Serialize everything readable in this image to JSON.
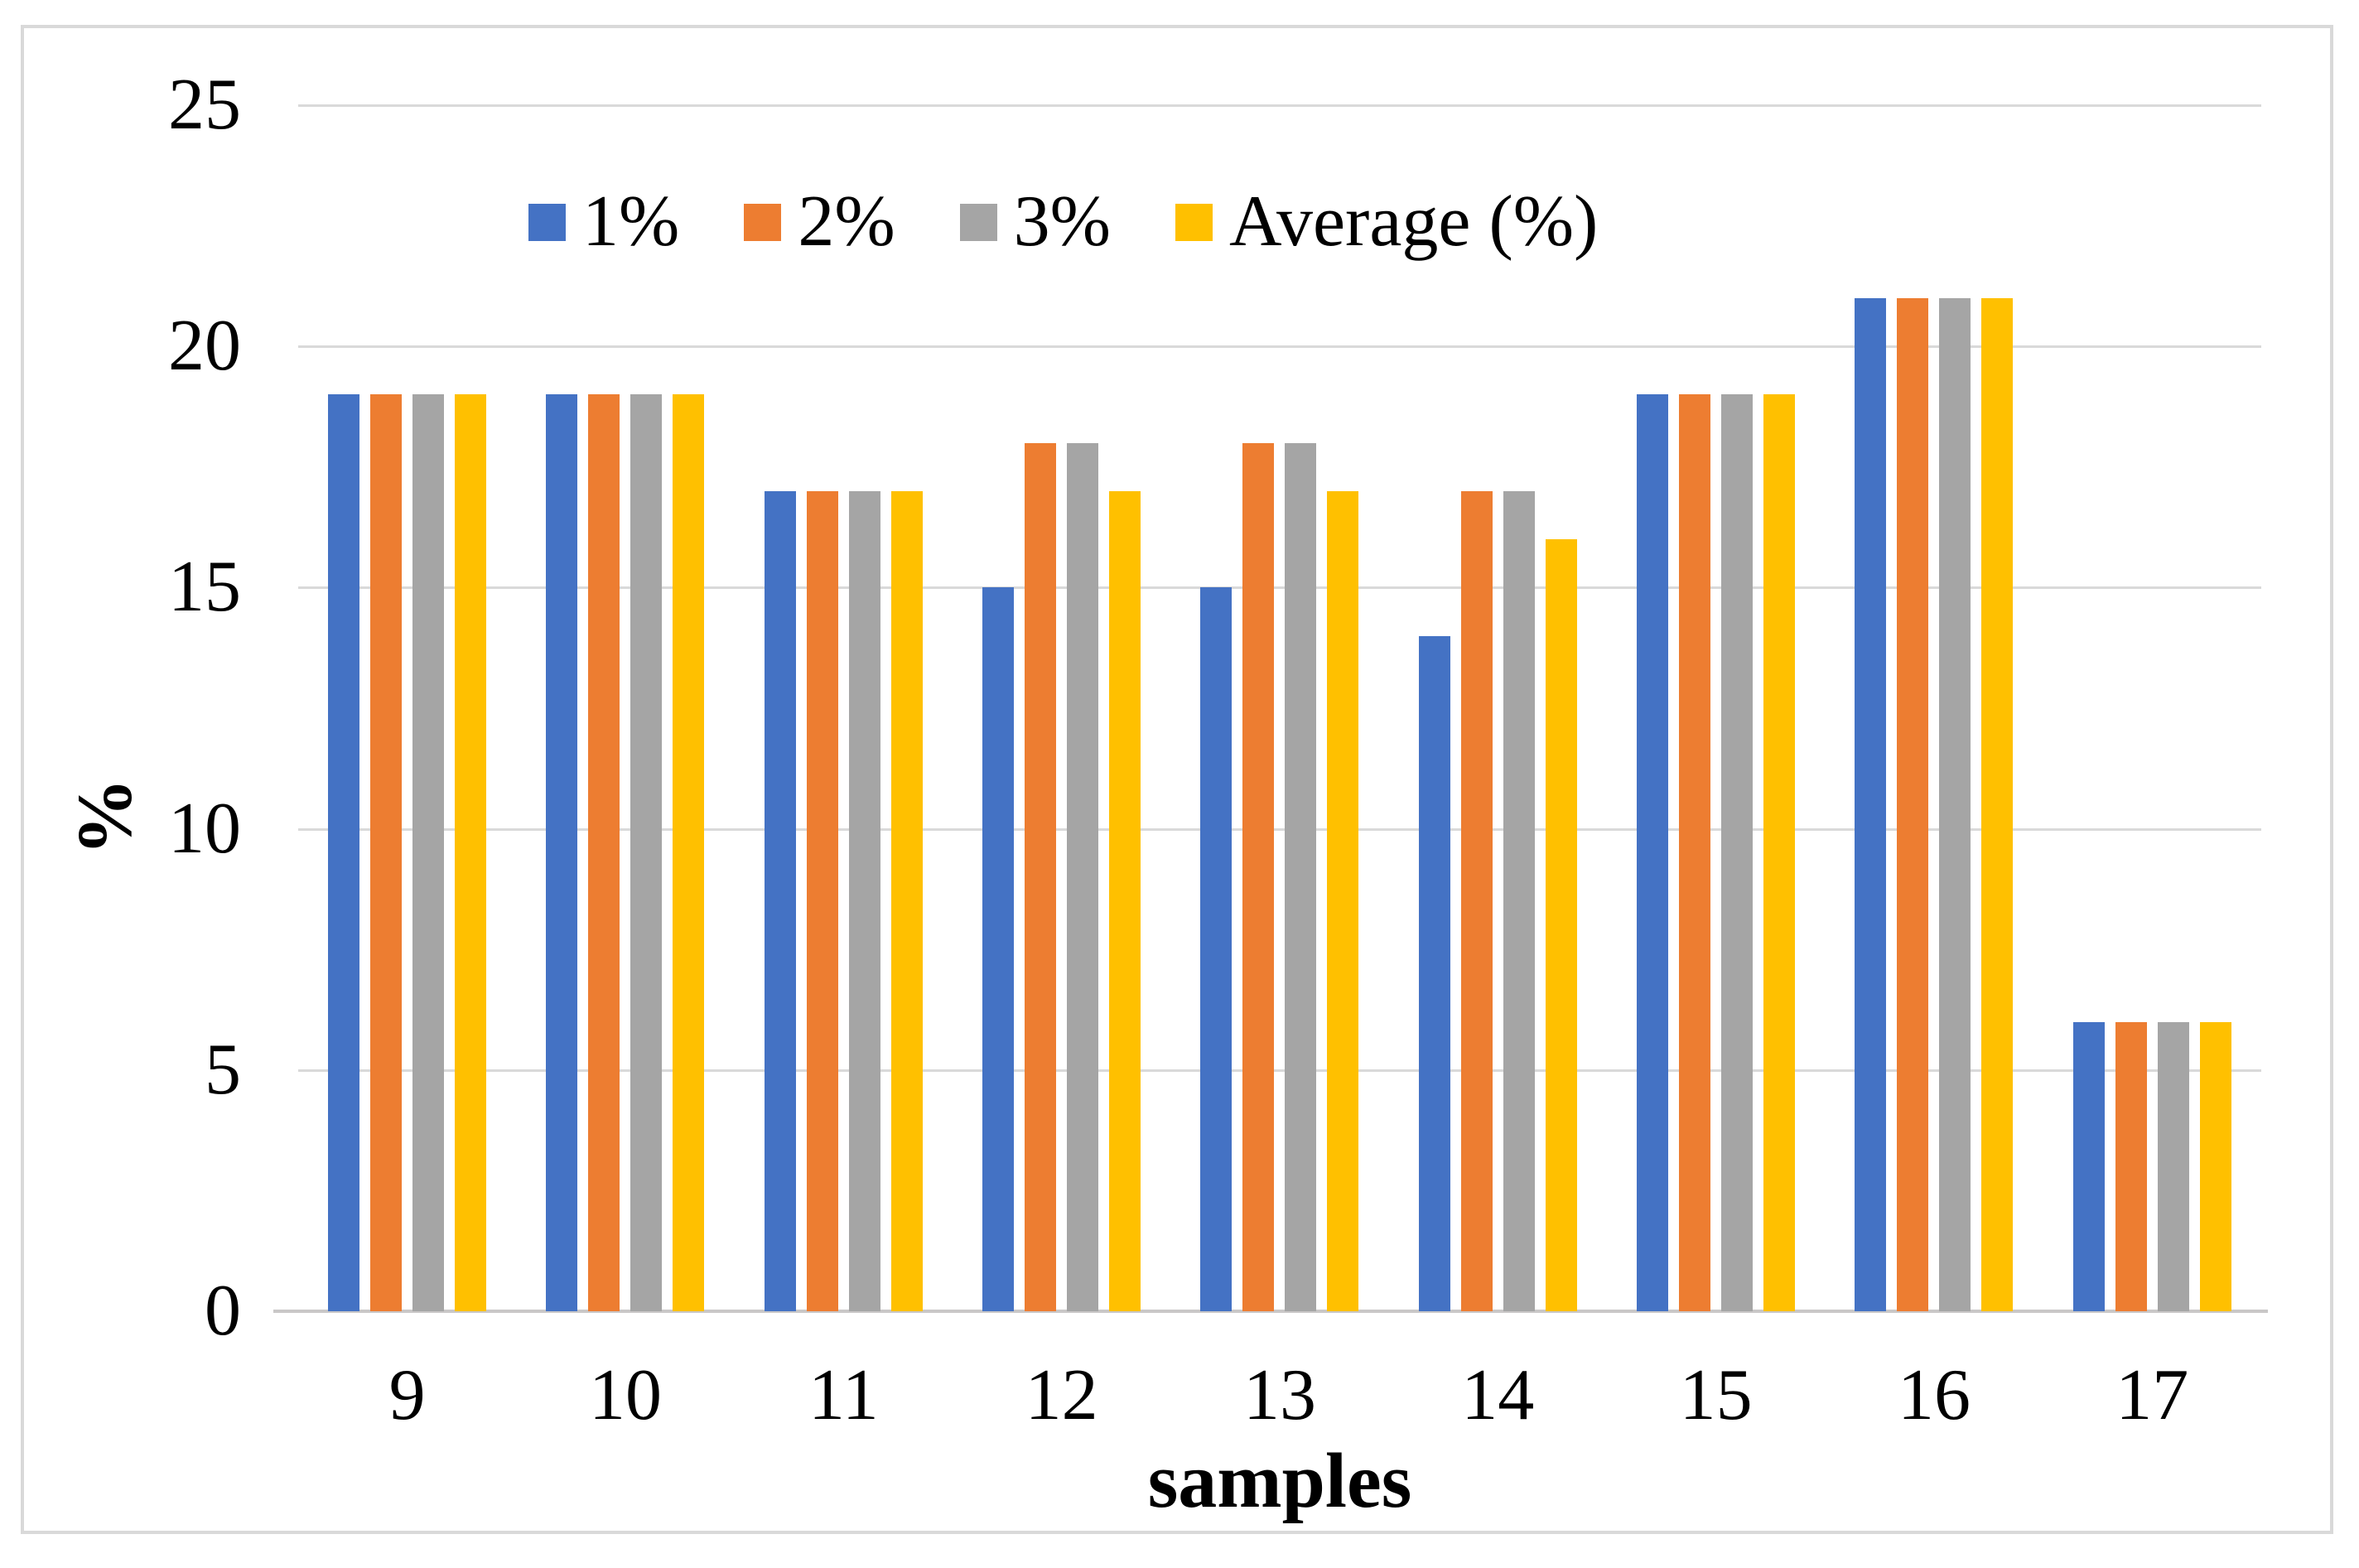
{
  "figure": {
    "background": "#ffffff",
    "frame_border_color": "#d9d9d9",
    "gridline_color": "#d9d9d9",
    "axisline_color": "#c9c7c7",
    "text_color": "#000000"
  },
  "chart_data": {
    "type": "bar",
    "title": "",
    "xlabel": "samples",
    "ylabel": "%",
    "categories": [
      "9",
      "10",
      "11",
      "12",
      "13",
      "14",
      "15",
      "16",
      "17"
    ],
    "series": [
      {
        "name": "1%",
        "color": "#4472C4",
        "values": [
          19,
          19,
          17,
          15,
          15,
          14,
          19,
          21,
          6
        ]
      },
      {
        "name": "2%",
        "color": "#ED7D31",
        "values": [
          19,
          19,
          17,
          18,
          18,
          17,
          19,
          21,
          6
        ]
      },
      {
        "name": "3%",
        "color": "#A5A5A5",
        "values": [
          19,
          19,
          17,
          18,
          18,
          17,
          19,
          21,
          6
        ]
      },
      {
        "name": "Average (%)",
        "color": "#FFC000",
        "values": [
          19,
          19,
          17,
          17,
          17,
          16,
          19,
          21,
          6
        ]
      }
    ],
    "ylim": [
      0,
      25
    ],
    "yticks": [
      0,
      5,
      10,
      15,
      20,
      25
    ],
    "grid": true,
    "legend_position": "top-center"
  }
}
